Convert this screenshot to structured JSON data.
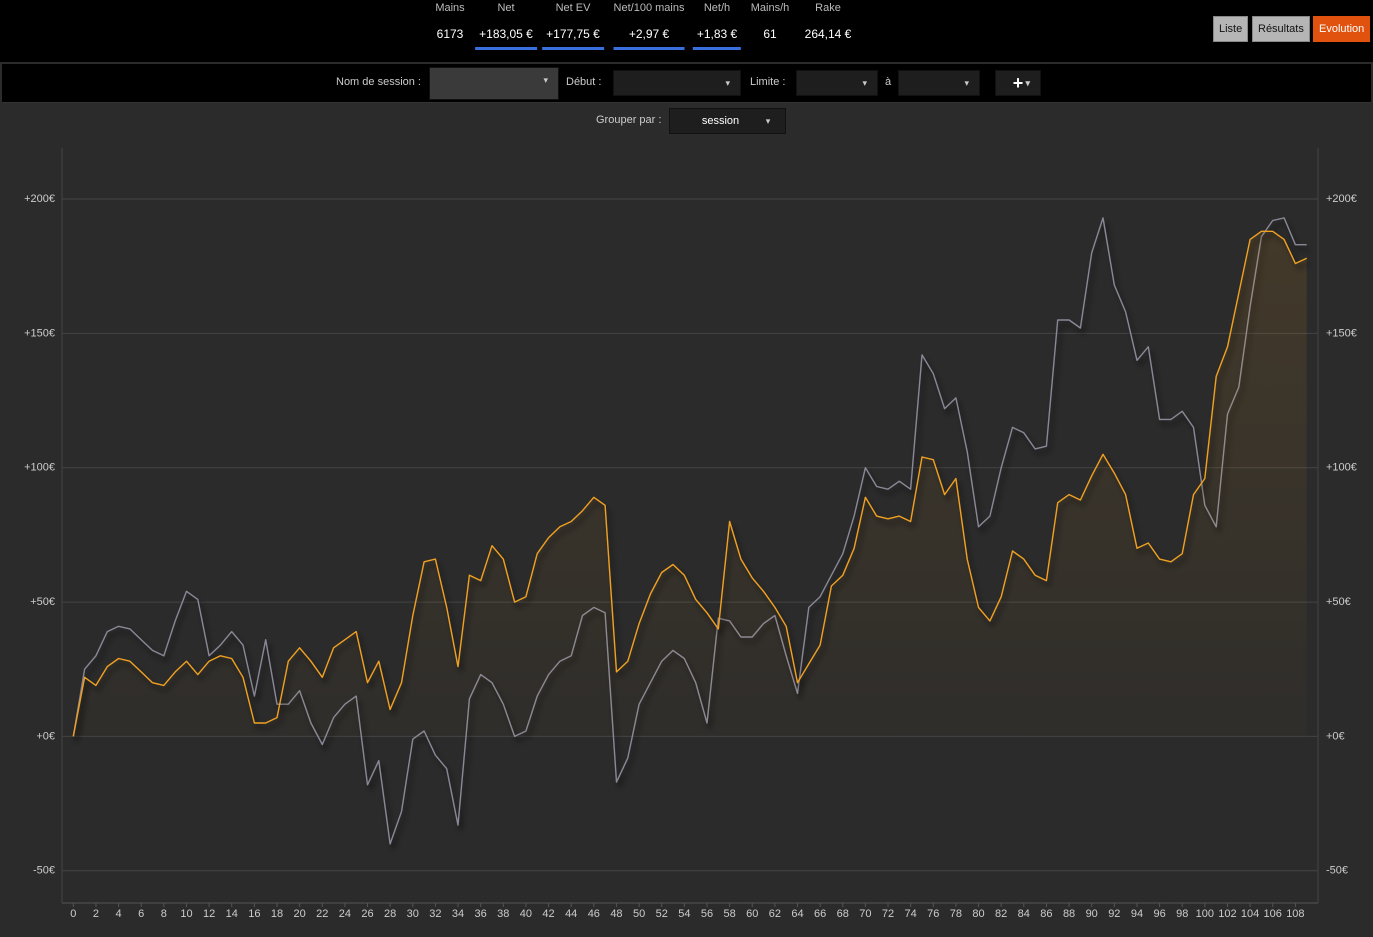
{
  "header": {
    "stats": [
      {
        "label": "Mains",
        "value": "6173"
      },
      {
        "label": "Net",
        "value": "+183,05 €"
      },
      {
        "label": "Net EV",
        "value": "+177,75 €"
      },
      {
        "label": "Net/100 mains",
        "value": "+2,97 €"
      },
      {
        "label": "Net/h",
        "value": "+1,83 €"
      },
      {
        "label": "Mains/h",
        "value": "61"
      },
      {
        "label": "Rake",
        "value": "264,14 €"
      }
    ],
    "buttons": [
      "Liste",
      "Résultats",
      "Evolution"
    ]
  },
  "filters": {
    "session_name": "Nom de session :",
    "start": "Début :",
    "limit": "Limite :",
    "to": "à",
    "add": "+",
    "group_by": "Grouper par :",
    "group_value": "session"
  },
  "chart_data": {
    "type": "line",
    "x": [
      0,
      1,
      2,
      3,
      4,
      5,
      6,
      7,
      8,
      9,
      10,
      11,
      12,
      13,
      14,
      15,
      16,
      17,
      18,
      19,
      20,
      21,
      22,
      23,
      24,
      25,
      26,
      27,
      28,
      29,
      30,
      31,
      32,
      33,
      34,
      35,
      36,
      37,
      38,
      39,
      40,
      41,
      42,
      43,
      44,
      45,
      46,
      47,
      48,
      49,
      50,
      51,
      52,
      53,
      54,
      55,
      56,
      57,
      58,
      59,
      60,
      61,
      62,
      63,
      64,
      65,
      66,
      67,
      68,
      69,
      70,
      71,
      72,
      73,
      74,
      75,
      76,
      77,
      78,
      79,
      80,
      81,
      82,
      83,
      84,
      85,
      86,
      87,
      88,
      89,
      90,
      91,
      92,
      93,
      94,
      95,
      96,
      97,
      98,
      99,
      100,
      101,
      102,
      103,
      104,
      105,
      106,
      107,
      108,
      109
    ],
    "series": [
      {
        "color": "#8a8796",
        "values": [
          0,
          25,
          30,
          39,
          41,
          40,
          36,
          32,
          30,
          43,
          54,
          51,
          30,
          34,
          39,
          34,
          15,
          36,
          12,
          12,
          17,
          5,
          -3,
          7,
          12,
          15,
          -18,
          -9,
          -40,
          -28,
          -1,
          2,
          -7,
          -12,
          -33,
          14,
          23,
          20,
          12,
          0,
          2,
          15,
          23,
          28,
          30,
          45,
          48,
          46,
          -17,
          -8,
          12,
          20,
          28,
          32,
          29,
          20,
          5,
          44,
          43,
          37,
          37,
          42,
          45,
          30,
          16,
          48,
          52,
          60,
          68,
          82,
          100,
          93,
          92,
          95,
          92,
          142,
          135,
          122,
          126,
          106,
          78,
          82,
          100,
          115,
          113,
          107,
          108,
          155,
          155,
          152,
          180,
          193,
          168,
          158,
          140,
          145,
          118,
          118,
          121,
          115,
          86,
          78,
          120,
          130,
          160,
          186,
          192,
          193,
          183,
          183
        ]
      },
      {
        "color": "#f0a020",
        "fill": true,
        "values": [
          0,
          22,
          19,
          26,
          29,
          28,
          24,
          20,
          19,
          24,
          28,
          23,
          28,
          30,
          29,
          22,
          5,
          5,
          7,
          28,
          33,
          28,
          22,
          33,
          36,
          39,
          20,
          28,
          10,
          20,
          45,
          65,
          66,
          48,
          26,
          60,
          58,
          71,
          66,
          50,
          52,
          68,
          74,
          78,
          80,
          84,
          89,
          86,
          24,
          28,
          42,
          53,
          61,
          64,
          60,
          51,
          46,
          40,
          80,
          66,
          59,
          54,
          48,
          41,
          20,
          27,
          34,
          56,
          60,
          70,
          89,
          82,
          81,
          82,
          80,
          104,
          103,
          90,
          96,
          66,
          48,
          43,
          52,
          69,
          66,
          60,
          58,
          87,
          90,
          88,
          97,
          105,
          98,
          90,
          70,
          72,
          66,
          65,
          68,
          90,
          96,
          134,
          145,
          165,
          185,
          188,
          188,
          185,
          176,
          178
        ]
      }
    ],
    "xlim": [
      -1,
      110
    ],
    "xticks": [
      0,
      2,
      4,
      6,
      8,
      10,
      12,
      14,
      16,
      18,
      20,
      22,
      24,
      26,
      28,
      30,
      32,
      34,
      36,
      38,
      40,
      42,
      44,
      46,
      48,
      50,
      52,
      54,
      56,
      58,
      60,
      62,
      64,
      66,
      68,
      70,
      72,
      74,
      76,
      78,
      80,
      82,
      84,
      86,
      88,
      90,
      92,
      94,
      96,
      98,
      100,
      102,
      104,
      106,
      108
    ],
    "ylim": [
      -62,
      219
    ],
    "yticks": [
      {
        "value": -50,
        "label": "-50€"
      },
      {
        "value": 0,
        "label": "+0€"
      },
      {
        "value": 50,
        "label": "+50€"
      },
      {
        "value": 100,
        "label": "+100€"
      },
      {
        "value": 150,
        "label": "+150€"
      },
      {
        "value": 200,
        "label": "+200€"
      }
    ],
    "grid": true
  }
}
